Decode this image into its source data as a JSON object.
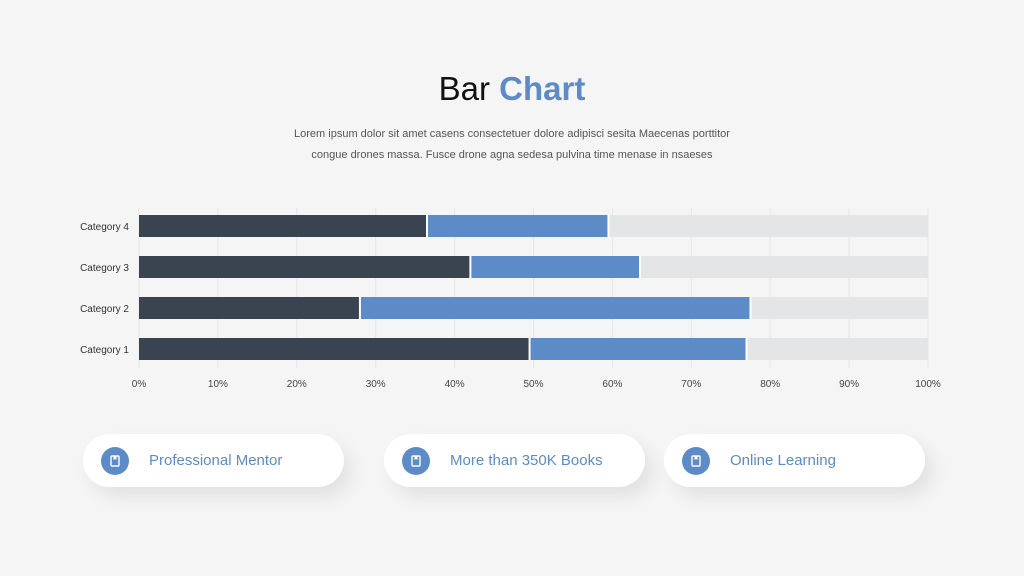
{
  "header": {
    "title_part1": "Bar",
    "title_part2": "Chart",
    "subtitle_line1": "Lorem ipsum dolor sit amet casens consectetuer dolore adipisci sesita Maecenas porttitor",
    "subtitle_line2": "congue drones massa. Fusce drone agna sedesa pulvina time menase in nsaeses"
  },
  "colors": {
    "dark": "#3a4450",
    "blue": "#5d8bc7",
    "light": "#e4e5e7",
    "accent": "#5d8bc7"
  },
  "chart_data": {
    "type": "bar",
    "orientation": "horizontal",
    "stacked": true,
    "categories": [
      "Category 1",
      "Category 2",
      "Category 3",
      "Category 4"
    ],
    "series": [
      {
        "values": [
          49.5,
          28,
          42,
          36.5
        ]
      },
      {
        "values": [
          27.5,
          49.5,
          21.5,
          23
        ]
      },
      {
        "values": [
          23,
          22.5,
          36.5,
          40.5
        ]
      }
    ],
    "xlim": [
      0,
      100
    ],
    "x_ticks": [
      "0%",
      "10%",
      "20%",
      "30%",
      "40%",
      "50%",
      "60%",
      "70%",
      "80%",
      "90%",
      "100%"
    ],
    "grid": true
  },
  "features": [
    {
      "label": "Professional Mentor",
      "icon": "book-icon"
    },
    {
      "label": "More than 350K Books",
      "icon": "book-icon"
    },
    {
      "label": "Online Learning",
      "icon": "book-icon"
    }
  ]
}
